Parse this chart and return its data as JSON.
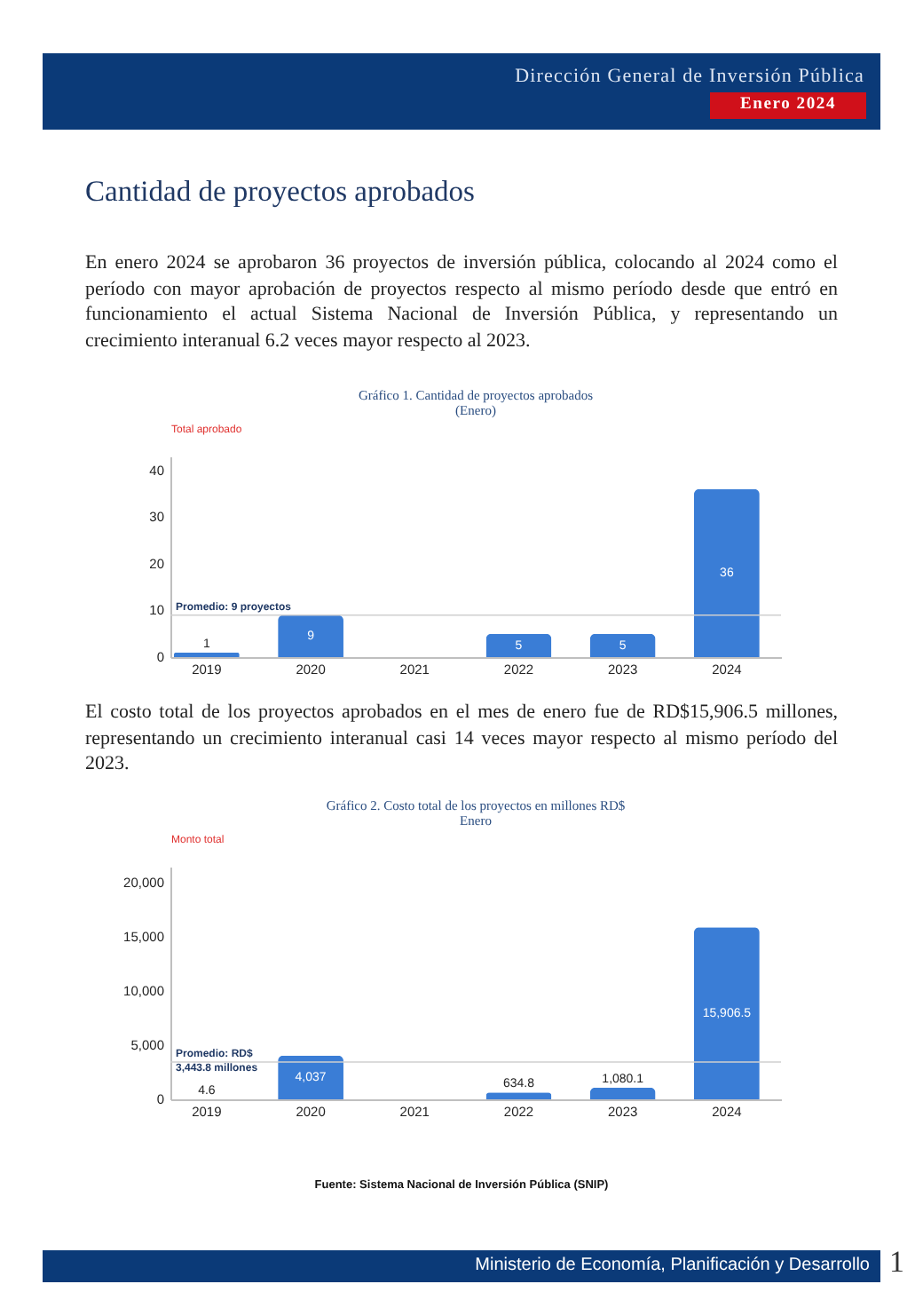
{
  "chart_data": [
    {
      "type": "bar",
      "title": "Gráfico 1. Cantidad de proyectos aprobados",
      "subtitle": "(Enero)",
      "ylabel": "Total aprobado",
      "categories": [
        "2019",
        "2020",
        "2021",
        "2022",
        "2023",
        "2024"
      ],
      "values": [
        1,
        9,
        null,
        5,
        5,
        36
      ],
      "color": "#3a7dd6",
      "ylim": [
        0,
        43
      ],
      "yticks": [
        0,
        10,
        20,
        30,
        40
      ],
      "data_labels": true,
      "ref_lines": [
        {
          "axis": "y",
          "value": 9,
          "label": "Promedio: 9 proyectos",
          "color": "#cfcfcf"
        }
      ],
      "annotations": [
        "Dirección General de Inversión Pública",
        "Enero 2024",
        "Cantidad de proyectos aprobados",
        "En enero 2024 se aprobaron 36 proyectos de inversión pública, colocando al 2024 como el período con mayor aprobación de proyectos respecto al mismo período desde que entró en funcionamiento el actual Sistema Nacional de Inversión Pública, y representando un crecimiento interanual 6.2 veces mayor respecto al 2023."
      ]
    },
    {
      "type": "bar",
      "title": "Gráfico 2. Costo total de los proyectos en millones RD$",
      "subtitle": "Enero",
      "ylabel": "Monto total",
      "categories": [
        "2019",
        "2020",
        "2021",
        "2022",
        "2023",
        "2024"
      ],
      "values": [
        4.6,
        4037,
        null,
        634.8,
        1080.1,
        15906.5
      ],
      "value_labels": [
        "4.6",
        "4,037",
        null,
        "634.8",
        "1,080.1",
        "15,906.5"
      ],
      "color": "#3a7dd6",
      "ylim": [
        0,
        21500
      ],
      "yticks": [
        0,
        {
          "value": 5000,
          "label": "5,000"
        },
        {
          "value": 10000,
          "label": "10,000"
        },
        {
          "value": 15000,
          "label": "15,000"
        },
        {
          "value": 20000,
          "label": "20,000"
        }
      ],
      "ref_lines": [
        {
          "axis": "y",
          "value": 3443.8,
          "label": "Promedio: RD$ 3,443.8 millones",
          "color": "#cfcfcf"
        }
      ],
      "annotations": [
        "El costo total de los proyectos aprobados en el mes de enero fue de RD$15,906.5 millones, representando un crecimiento interanual casi 14 veces mayor respecto al mismo período del 2023.",
        "Fuente: Sistema Nacional de Inversión Pública (SNIP)",
        "Ministerio de Economía, Planificación y Desarrollo",
        "1"
      ]
    }
  ]
}
